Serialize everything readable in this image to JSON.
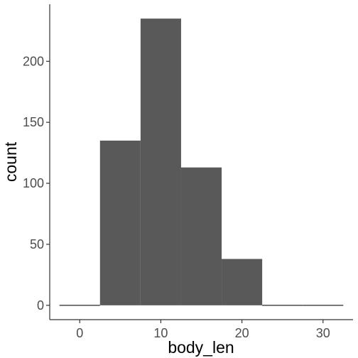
{
  "chart_data": {
    "type": "bar",
    "xlabel": "body_len",
    "ylabel": "count",
    "bin_width": 5,
    "bins": [
      {
        "x": 0,
        "count": 0
      },
      {
        "x": 5,
        "count": 135
      },
      {
        "x": 10,
        "count": 235
      },
      {
        "x": 15,
        "count": 113
      },
      {
        "x": 20,
        "count": 38
      },
      {
        "x": 25,
        "count": 0
      },
      {
        "x": 30,
        "count": 0
      }
    ],
    "xlim": [
      -3.7,
      33.7
    ],
    "ylim": [
      -11.75,
      246.75
    ],
    "xticks": [
      0,
      10,
      20,
      30
    ],
    "yticks": [
      0,
      50,
      100,
      150,
      200
    ],
    "grid": false,
    "colors": {
      "bar": "#595959",
      "axis": "#333333",
      "text": "#4d4d4d"
    }
  }
}
